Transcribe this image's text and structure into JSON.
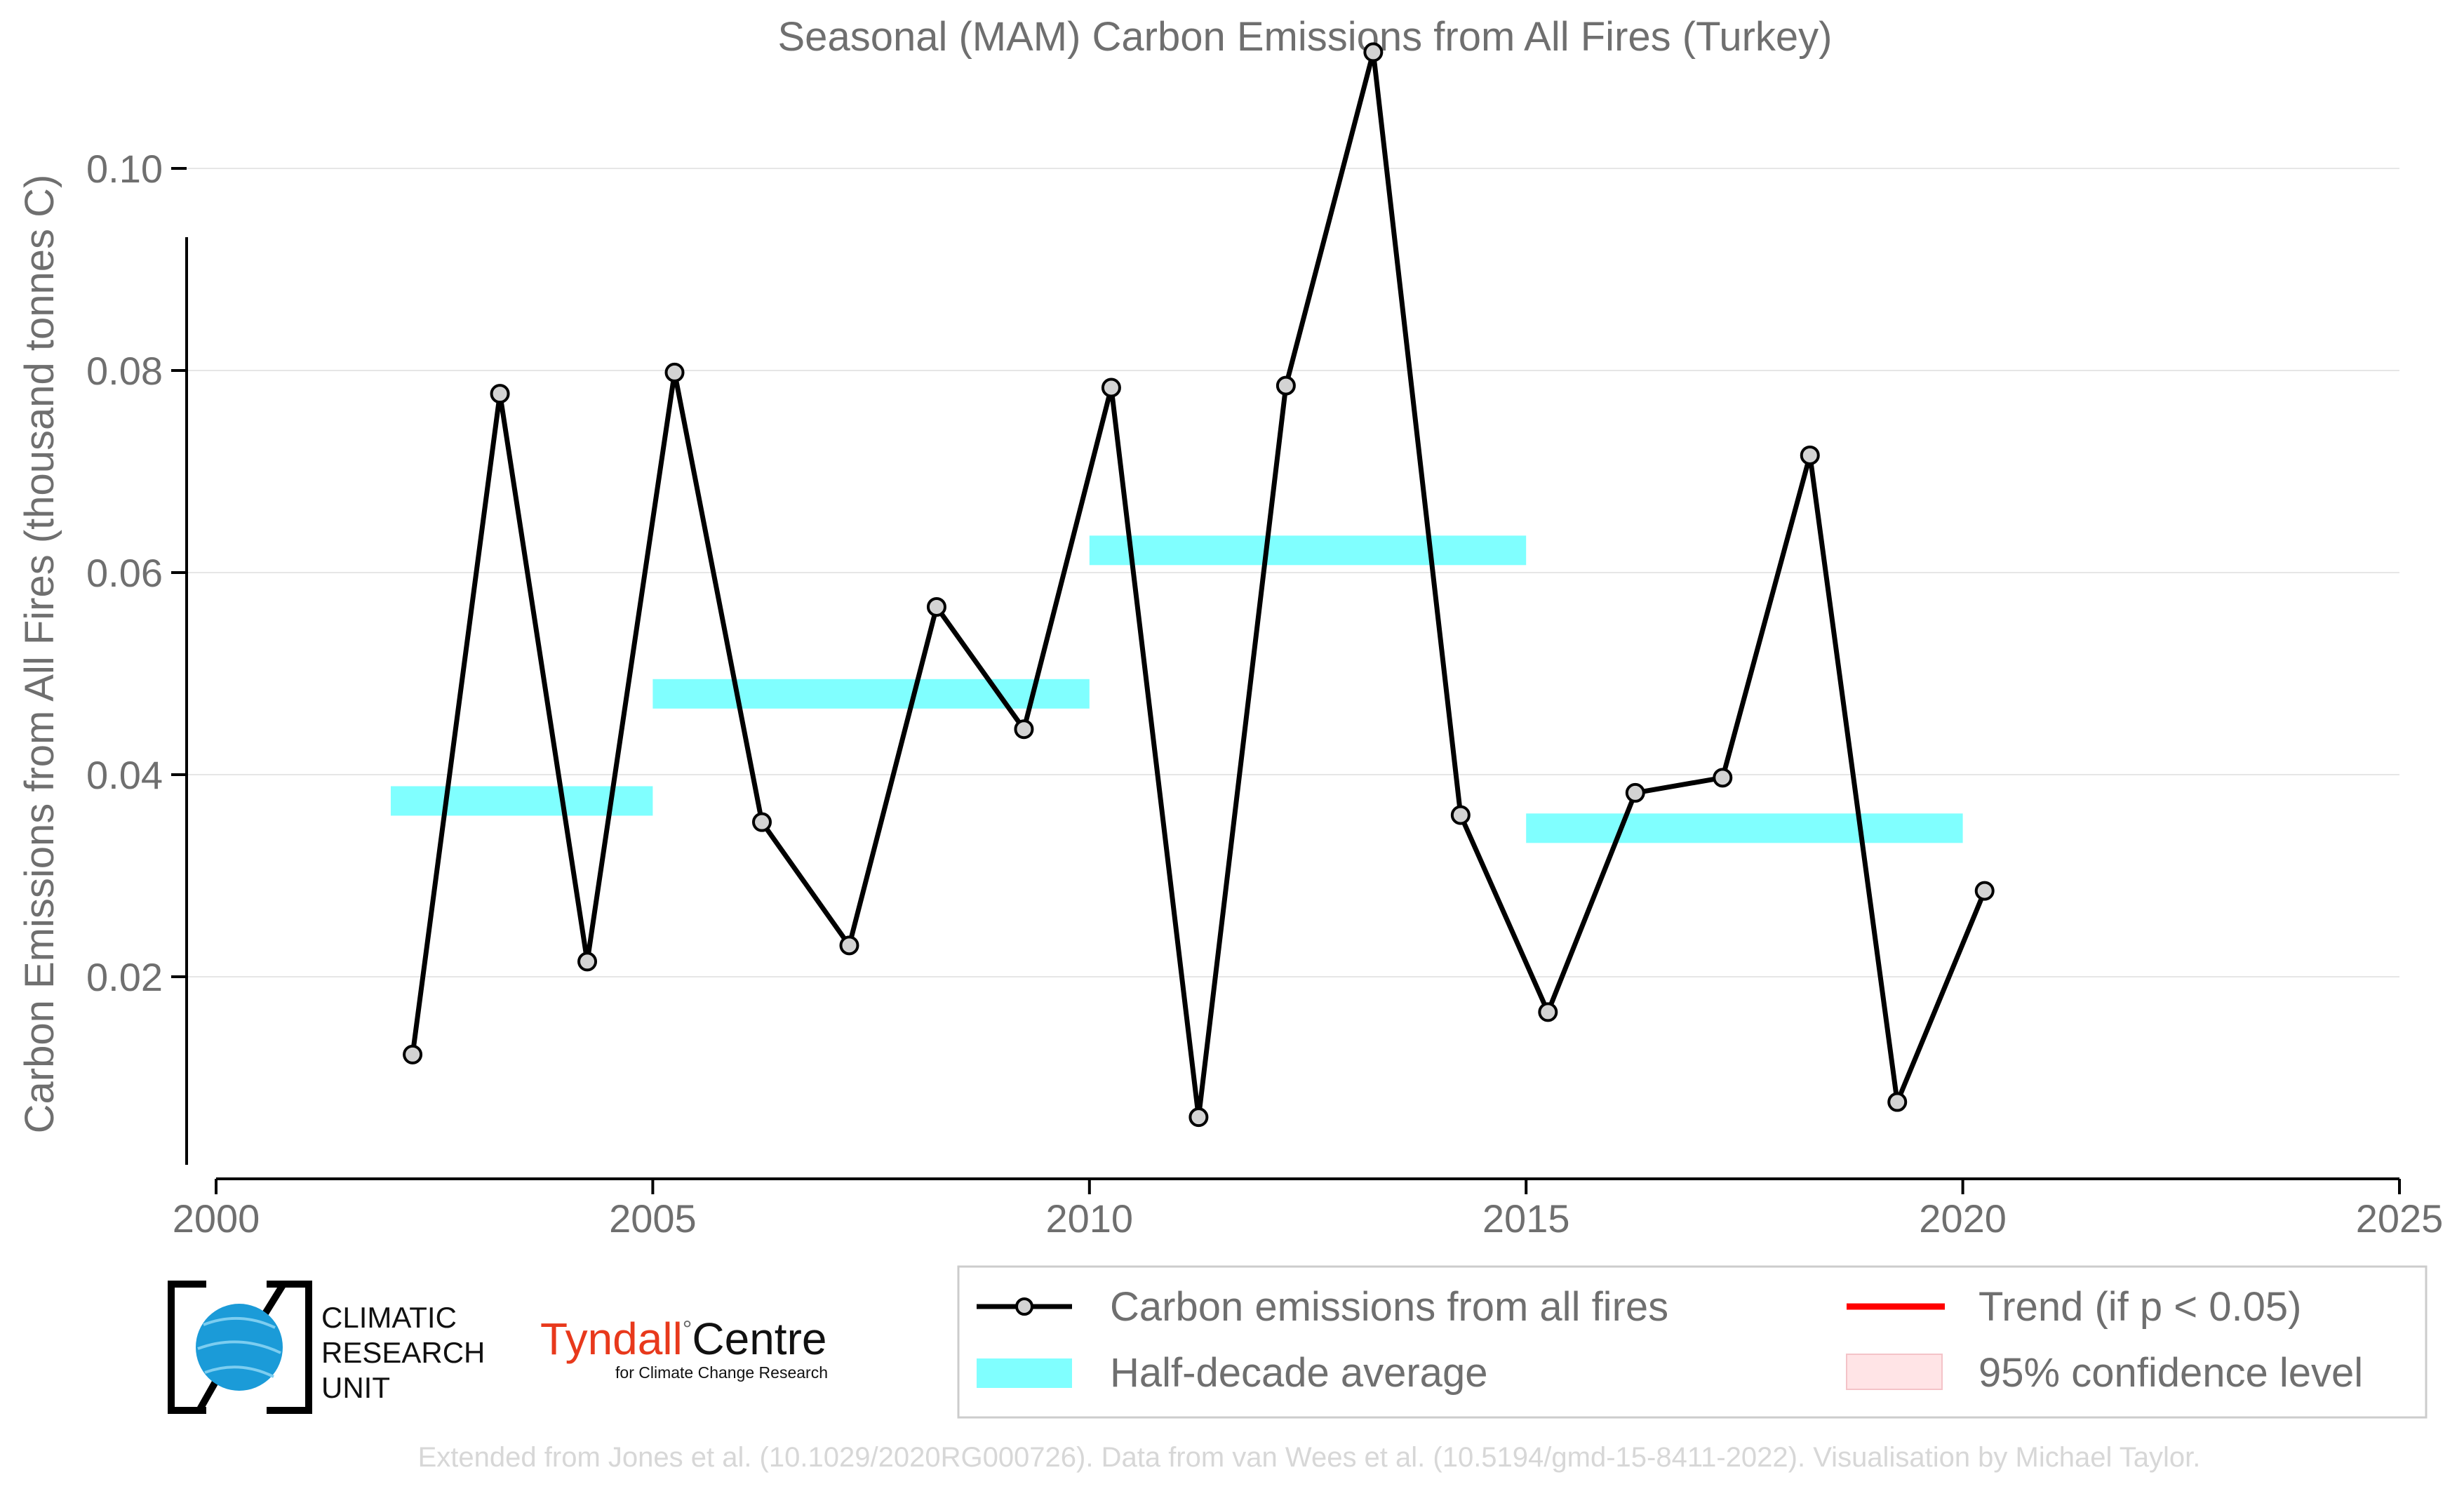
{
  "chart_data": {
    "type": "line",
    "title": "Seasonal (MAM) Carbon Emissions from All Fires (Turkey)",
    "xlabel": "",
    "ylabel": "Carbon Emissions from All Fires (thousand tonnes C)",
    "xlim": [
      2000,
      2025
    ],
    "ylim": [
      0,
      0.115
    ],
    "x_ticks": [
      "2000",
      "2005",
      "2010",
      "2015",
      "2020",
      "2025"
    ],
    "y_ticks": [
      "0.02",
      "0.04",
      "0.06",
      "0.08",
      "0.10"
    ],
    "grid": "horizontal",
    "series": [
      {
        "name": "Carbon emissions from all fires",
        "x": [
          2002.25,
          2003.25,
          2004.25,
          2005.25,
          2006.25,
          2007.25,
          2008.25,
          2009.25,
          2010.25,
          2011.25,
          2012.25,
          2013.25,
          2014.25,
          2015.25,
          2016.25,
          2017.25,
          2018.25,
          2019.25,
          2020.25
        ],
        "values": [
          0.0123,
          0.0777,
          0.0215,
          0.0798,
          0.0353,
          0.0231,
          0.0566,
          0.0445,
          0.0783,
          0.0061,
          0.0785,
          0.1115,
          0.036,
          0.0165,
          0.0382,
          0.0397,
          0.0716,
          0.0076,
          0.0285
        ],
        "color": "#000000"
      },
      {
        "name": "Half-decade average",
        "segments": [
          {
            "x_start": 2002,
            "x_end": 2005,
            "value": 0.0374
          },
          {
            "x_start": 2005,
            "x_end": 2010,
            "value": 0.048
          },
          {
            "x_start": 2010,
            "x_end": 2015,
            "value": 0.0622
          },
          {
            "x_start": 2015,
            "x_end": 2020,
            "value": 0.0347
          }
        ],
        "color": "#80ffff"
      }
    ],
    "legend": {
      "placement": "bottom-right",
      "entries": [
        {
          "label": "Carbon emissions from all fires",
          "color": "#000000",
          "symbol": "line-marker"
        },
        {
          "label": "Trend (if p < 0.05)",
          "color": "#ff0000",
          "symbol": "line"
        },
        {
          "label": "Half-decade average",
          "color": "#80ffff",
          "symbol": "box"
        },
        {
          "label": "95% confidence level",
          "color": "#ffe4e6",
          "symbol": "box"
        }
      ]
    }
  },
  "logos": {
    "cru_line1": "CLIMATIC",
    "cru_line2": "RESEARCH",
    "cru_line3": "UNIT",
    "tyndall_main": "Tyndall",
    "tyndall_degree": "°",
    "tyndall_centre": "Centre",
    "tyndall_sub": "for Climate Change Research"
  },
  "footer": {
    "credit": "Extended from Jones et al. (10.1029/2020RG000726). Data from van Wees et al. (10.5194/gmd-15-8411-2022). Visualisation by Michael Taylor."
  },
  "colors": {
    "line": "#000000",
    "marker_fill": "#d3d3d3",
    "band": "#80ffff",
    "trend": "#ff0000",
    "confidence": "#ffe4e6",
    "text": "#6f6f6f",
    "grid": "#e6e6e6",
    "cru_globe": "#1b9bd8",
    "tyndall_red": "#e8391c"
  }
}
